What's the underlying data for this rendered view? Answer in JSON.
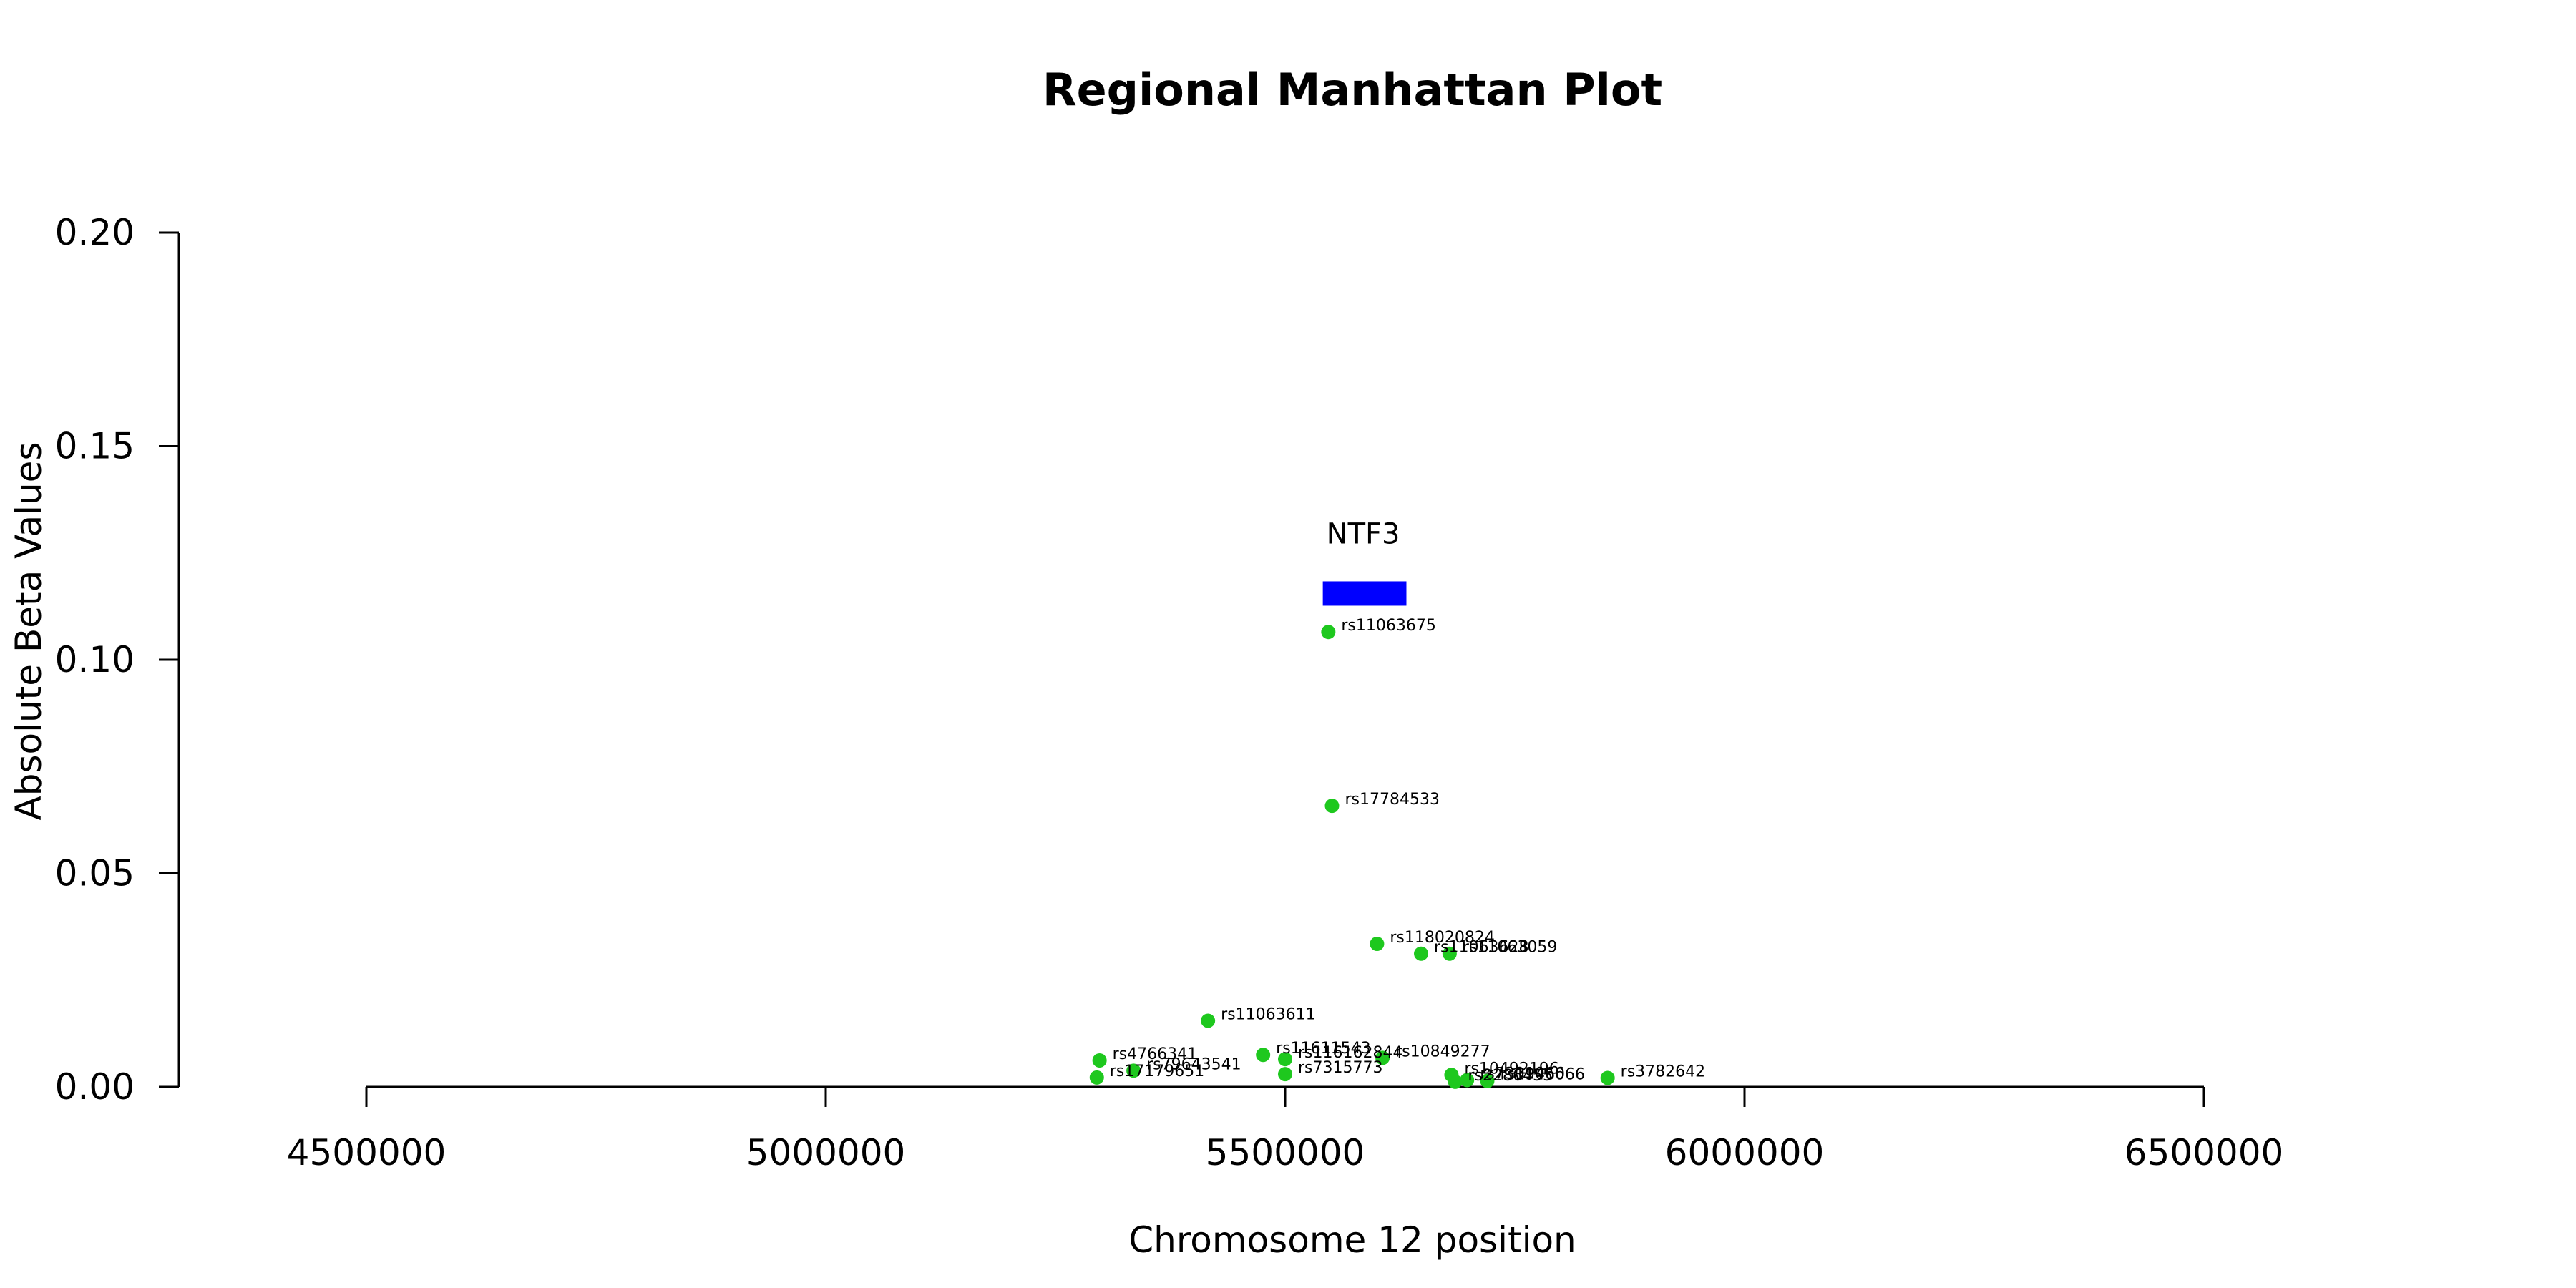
{
  "chart_data": {
    "type": "scatter",
    "title": "Regional Manhattan Plot",
    "xlabel": "Chromosome 12 position",
    "ylabel": "Absolute Beta Values",
    "xlim": [
      4500000,
      6500000
    ],
    "ylim": [
      0,
      0.2
    ],
    "x_ticks": [
      4500000,
      5000000,
      5500000,
      6000000,
      6500000
    ],
    "y_ticks": [
      0.0,
      0.05,
      0.1,
      0.15,
      0.2
    ],
    "x_tick_labels": [
      "4500000",
      "5000000",
      "5500000",
      "6000000",
      "6500000"
    ],
    "y_tick_labels": [
      "0.00",
      "0.05",
      "0.10",
      "0.15",
      "0.20"
    ],
    "grid": false,
    "point_color": "#1ec81e",
    "gene": {
      "name": "NTF3",
      "start": 5541000,
      "end": 5632000,
      "y_center": 0.1155,
      "color": "#0000ff"
    },
    "points": [
      {
        "snp": "rs11063675",
        "x": 5547000,
        "y": 0.1065
      },
      {
        "snp": "rs17784533",
        "x": 5551000,
        "y": 0.0658
      },
      {
        "snp": "rs118020824",
        "x": 5600000,
        "y": 0.0335
      },
      {
        "snp": "rs11063628",
        "x": 5648000,
        "y": 0.0312
      },
      {
        "snp": "rs11063059",
        "x": 5679000,
        "y": 0.0312
      },
      {
        "snp": "rs11063611",
        "x": 5416000,
        "y": 0.0155
      },
      {
        "snp": "rs11611543",
        "x": 5476000,
        "y": 0.0075
      },
      {
        "snp": "rs116162844",
        "x": 5500000,
        "y": 0.0065
      },
      {
        "snp": "rs10849277",
        "x": 5606000,
        "y": 0.0068
      },
      {
        "snp": "rs4766341",
        "x": 5298000,
        "y": 0.0062
      },
      {
        "snp": "rs79643541",
        "x": 5335000,
        "y": 0.0038
      },
      {
        "snp": "rs17179651",
        "x": 5295000,
        "y": 0.0022
      },
      {
        "snp": "rs7315773",
        "x": 5500000,
        "y": 0.003
      },
      {
        "snp": "rs10492196",
        "x": 5681000,
        "y": 0.0028
      },
      {
        "snp": "rs2286455",
        "x": 5685000,
        "y": 0.0012
      },
      {
        "snp": "rs7301066",
        "x": 5698000,
        "y": 0.0016
      },
      {
        "snp": "rs1946066",
        "x": 5720000,
        "y": 0.0014
      },
      {
        "snp": "rs3782642",
        "x": 5851000,
        "y": 0.0021
      }
    ]
  }
}
